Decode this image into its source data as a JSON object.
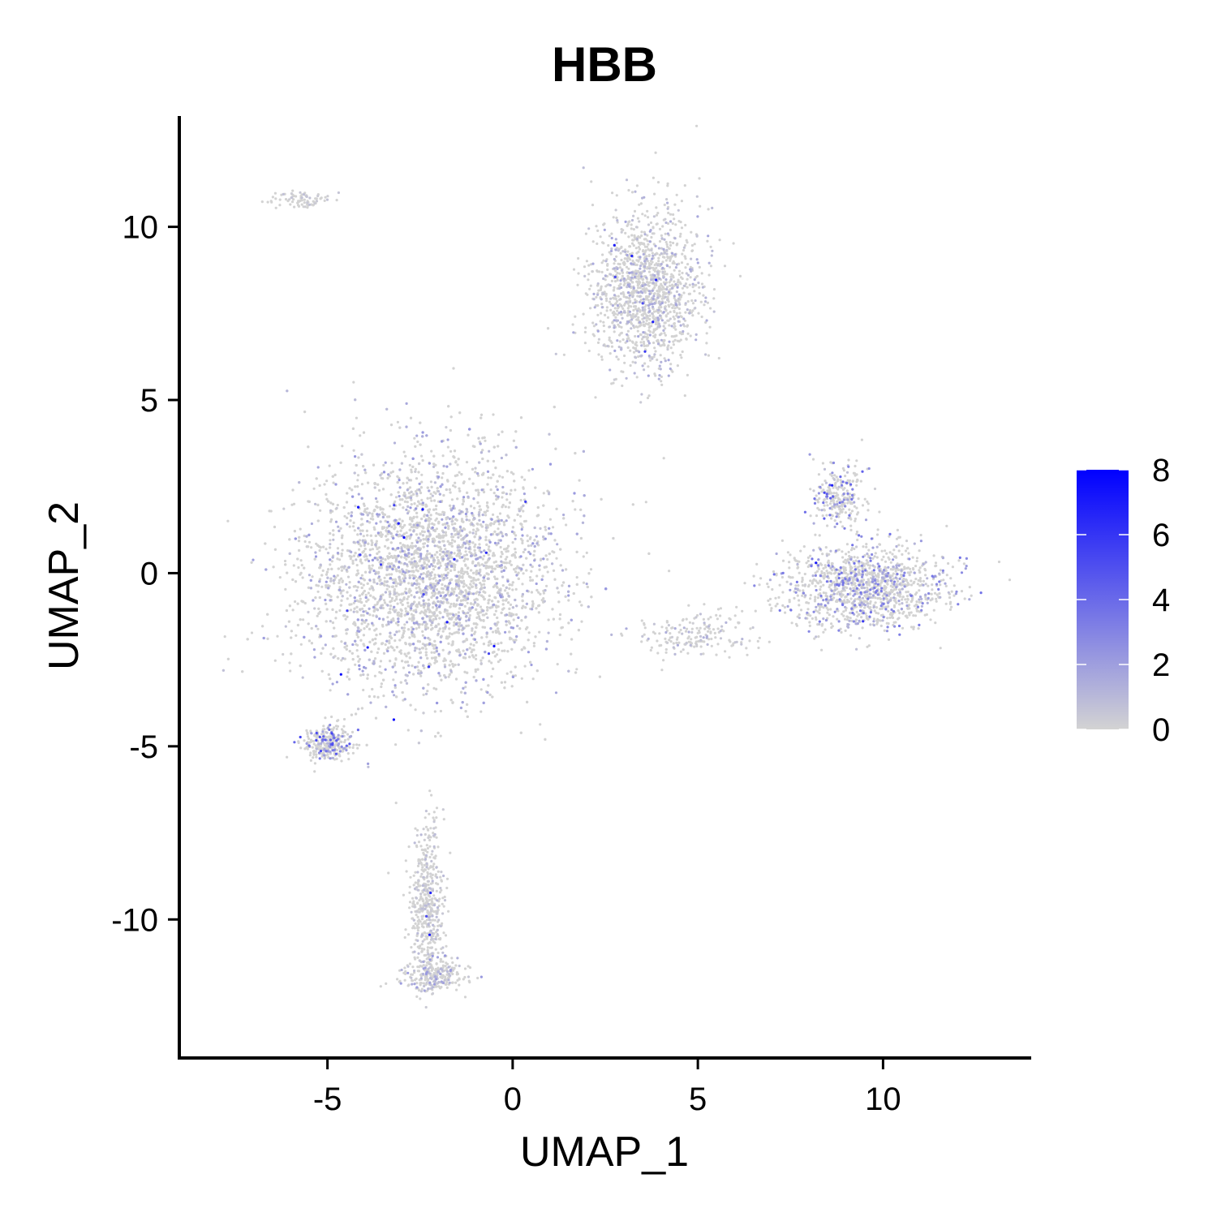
{
  "chart_data": {
    "type": "scatter",
    "title": "HBB",
    "xlabel": "UMAP_1",
    "ylabel": "UMAP_2",
    "xlim": [
      -9,
      14
    ],
    "ylim": [
      -14,
      13.2
    ],
    "x_ticks": [
      -5,
      0,
      5,
      10
    ],
    "y_ticks": [
      -10,
      -5,
      0,
      5,
      10
    ],
    "grid": false,
    "color_scale": {
      "min": 0,
      "max": 8,
      "ticks": [
        0,
        2,
        4,
        6,
        8
      ],
      "low_color": "#d3d3d3",
      "high_color": "#0000ff"
    },
    "clusters": [
      {
        "center": [
          -2.2,
          0.0
        ],
        "spread": [
          3.0,
          3.0
        ],
        "count": 5200,
        "expression": 0.9
      },
      {
        "center": [
          -5.0,
          -4.9
        ],
        "spread": [
          0.6,
          0.5
        ],
        "count": 300,
        "expression": 2.2
      },
      {
        "center": [
          3.6,
          8.2
        ],
        "spread": [
          1.3,
          2.0
        ],
        "count": 1400,
        "expression": 0.7
      },
      {
        "center": [
          9.5,
          -0.4
        ],
        "spread": [
          2.0,
          1.1
        ],
        "count": 1300,
        "expression": 1.5
      },
      {
        "center": [
          8.8,
          2.2
        ],
        "spread": [
          0.6,
          0.7
        ],
        "count": 250,
        "expression": 1.8
      },
      {
        "center": [
          -2.3,
          -9.5
        ],
        "spread": [
          0.4,
          2.0
        ],
        "count": 500,
        "expression": 0.4
      },
      {
        "center": [
          -2.1,
          -11.6
        ],
        "spread": [
          0.8,
          0.4
        ],
        "count": 250,
        "expression": 0.9
      },
      {
        "center": [
          -5.8,
          10.8
        ],
        "spread": [
          0.8,
          0.25
        ],
        "count": 80,
        "expression": 0.3
      },
      {
        "center": [
          4.9,
          -1.8
        ],
        "spread": [
          1.5,
          0.6
        ],
        "count": 180,
        "expression": 0.6
      }
    ]
  }
}
